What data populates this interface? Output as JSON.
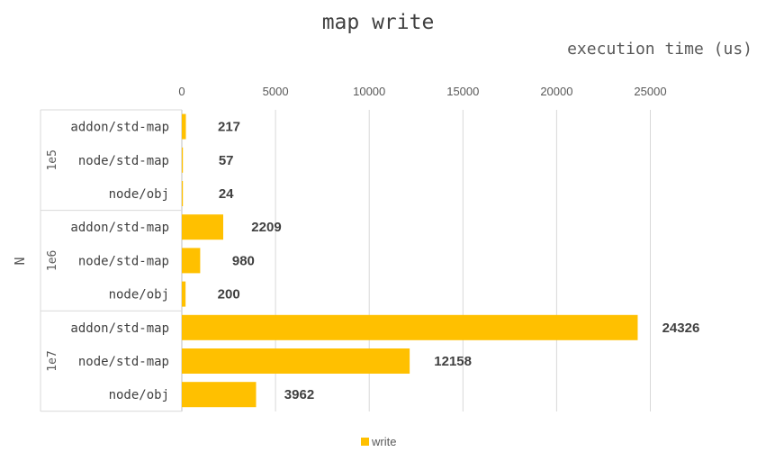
{
  "chart_data": {
    "type": "bar",
    "orientation": "horizontal",
    "title": "map write",
    "xlabel": "execution time (us)",
    "ylabel": "N",
    "xlim": [
      0,
      28000
    ],
    "xticks": [
      0,
      5000,
      10000,
      15000,
      20000,
      25000
    ],
    "x_axis_position": "top",
    "grid": true,
    "legend": "bottom",
    "colors": {
      "write": "#FFC000"
    },
    "groups": [
      {
        "name": "1e5",
        "categories": [
          "addon/std-map",
          "node/std-map",
          "node/obj"
        ],
        "values": [
          217,
          57,
          24
        ]
      },
      {
        "name": "1e6",
        "categories": [
          "addon/std-map",
          "node/std-map",
          "node/obj"
        ],
        "values": [
          2209,
          980,
          200
        ]
      },
      {
        "name": "1e7",
        "categories": [
          "addon/std-map",
          "node/std-map",
          "node/obj"
        ],
        "values": [
          24326,
          12158,
          3962
        ]
      }
    ],
    "series": [
      {
        "name": "write",
        "values": [
          217,
          57,
          24,
          2209,
          980,
          200,
          24326,
          12158,
          3962
        ]
      }
    ]
  }
}
